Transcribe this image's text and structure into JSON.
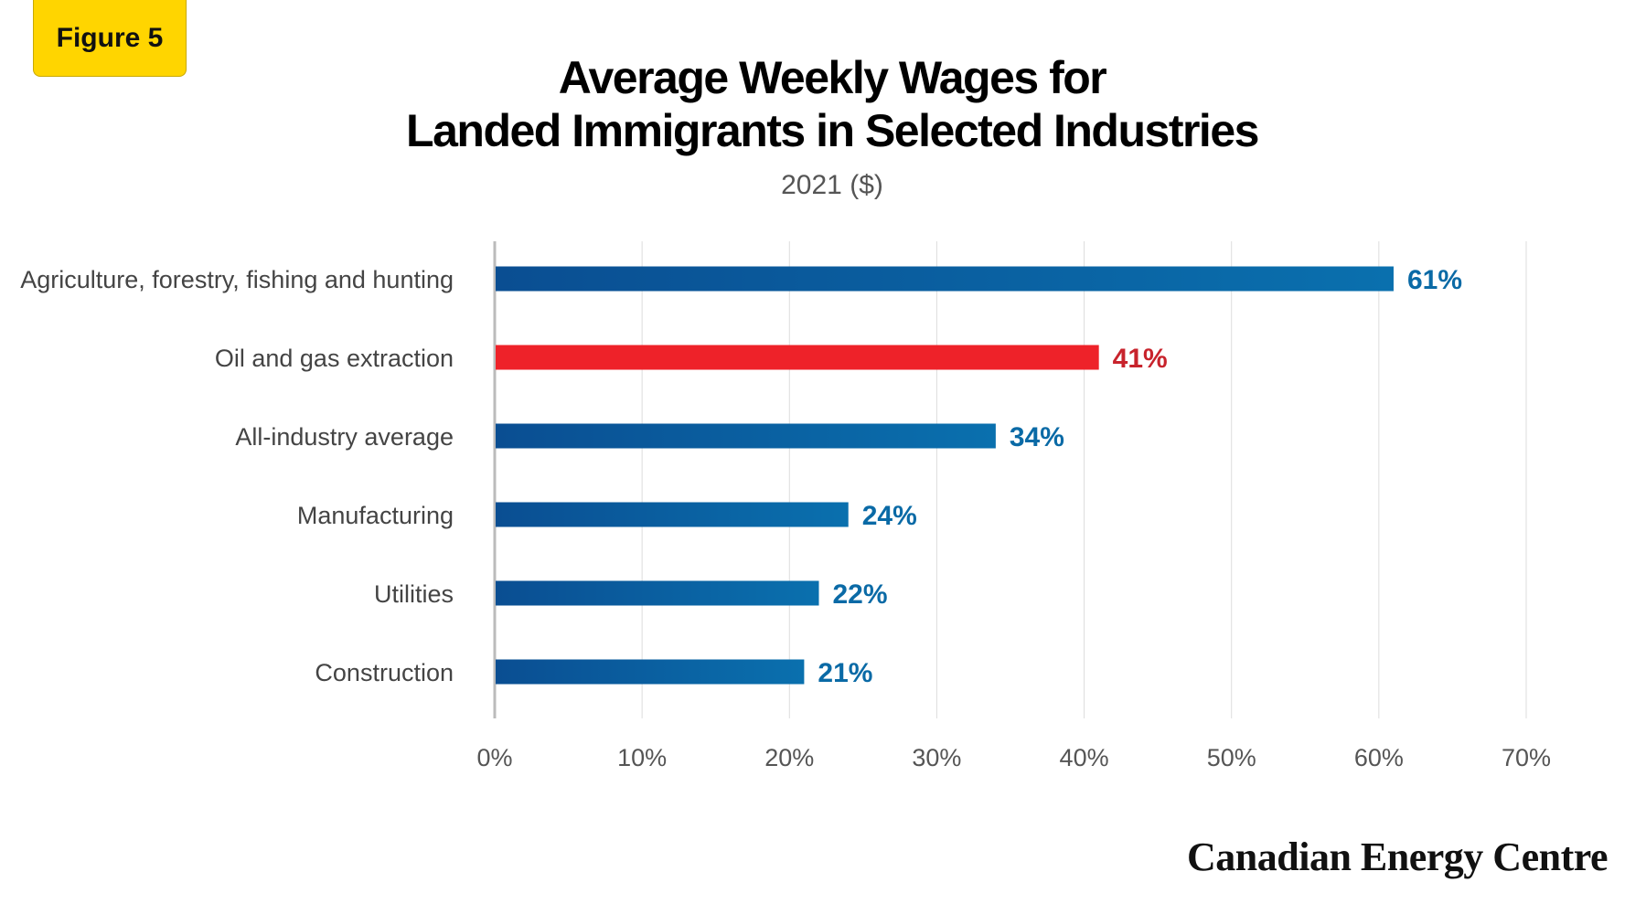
{
  "badge": "Figure 5",
  "brand": "Canadian Energy Centre",
  "chart_data": {
    "type": "bar",
    "orientation": "horizontal",
    "title_line1": "Average Weekly Wages for",
    "title_line2": "Landed Immigrants in Selected Industries",
    "subtitle": "2021 ($)",
    "categories": [
      "Agriculture, forestry, fishing and hunting",
      "Oil and gas extraction",
      "All-industry average",
      "Manufacturing",
      "Utilities",
      "Construction"
    ],
    "values": [
      61,
      41,
      34,
      24,
      22,
      21
    ],
    "value_labels": [
      "61%",
      "41%",
      "34%",
      "24%",
      "22%",
      "21%"
    ],
    "bar_colors": [
      "#0B5FA5",
      "#EE2229",
      "#0B5FA5",
      "#0B5FA5",
      "#0B5FA5",
      "#0B5FA5"
    ],
    "label_colors": [
      "#0A6AA6",
      "#C8232C",
      "#0A6AA6",
      "#0A6AA6",
      "#0A6AA6",
      "#0A6AA6"
    ],
    "xlim": [
      0,
      70
    ],
    "ticks": [
      0,
      10,
      20,
      30,
      40,
      50,
      60,
      70
    ],
    "tick_labels": [
      "0%",
      "10%",
      "20%",
      "30%",
      "40%",
      "50%",
      "60%",
      "70%"
    ],
    "xlabel": "",
    "ylabel": "",
    "grid": "vertical"
  }
}
